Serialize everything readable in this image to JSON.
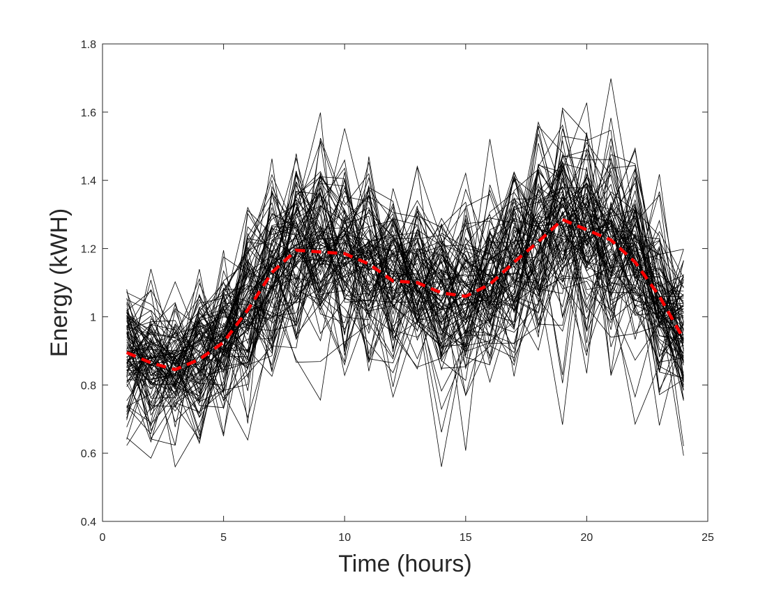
{
  "chart_data": {
    "type": "line",
    "xlabel": "Time (hours)",
    "ylabel": "Energy (kWH)",
    "xlim": [
      0,
      25
    ],
    "ylim": [
      0.4,
      1.8
    ],
    "xticks": [
      0,
      5,
      10,
      15,
      20,
      25
    ],
    "xtick_labels": [
      "0",
      "5",
      "10",
      "15",
      "20",
      "25"
    ],
    "yticks": [
      0.4,
      0.6,
      0.8,
      1.0,
      1.2,
      1.4,
      1.6,
      1.8
    ],
    "ytick_labels": [
      "0.4",
      "0.6",
      "0.8",
      "1",
      "1.2",
      "1.4",
      "1.6",
      "1.8"
    ],
    "grid": false,
    "x": [
      1,
      2,
      3,
      4,
      5,
      6,
      7,
      8,
      9,
      10,
      11,
      12,
      13,
      14,
      15,
      16,
      17,
      18,
      19,
      20,
      21,
      22,
      23,
      24
    ],
    "samples": {
      "count": 100,
      "color": "#000000",
      "spread": [
        0.11,
        0.11,
        0.11,
        0.11,
        0.12,
        0.13,
        0.14,
        0.15,
        0.15,
        0.15,
        0.14,
        0.13,
        0.13,
        0.13,
        0.13,
        0.13,
        0.14,
        0.15,
        0.16,
        0.16,
        0.15,
        0.14,
        0.13,
        0.12
      ]
    },
    "series": [
      {
        "line_style": "dashed",
        "color": "#ff0000",
        "values": [
          0.895,
          0.865,
          0.845,
          0.875,
          0.925,
          1.02,
          1.13,
          1.195,
          1.19,
          1.185,
          1.155,
          1.105,
          1.1,
          1.07,
          1.06,
          1.095,
          1.16,
          1.22,
          1.285,
          1.255,
          1.225,
          1.16,
          1.06,
          0.935
        ]
      }
    ]
  }
}
